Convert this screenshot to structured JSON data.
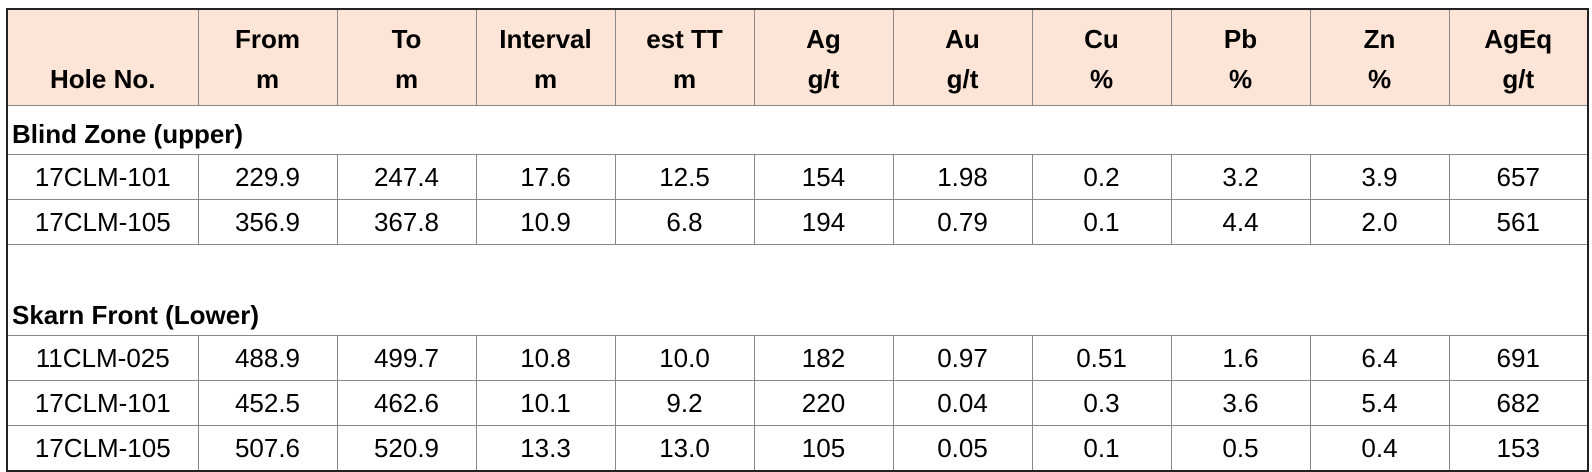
{
  "table": {
    "header": [
      [
        "Hole No."
      ],
      [
        "From",
        "m"
      ],
      [
        "To",
        "m"
      ],
      [
        "Interval",
        "m"
      ],
      [
        "est TT",
        "m"
      ],
      [
        "Ag",
        "g/t"
      ],
      [
        "Au",
        "g/t"
      ],
      [
        "Cu",
        "%"
      ],
      [
        "Pb",
        "%"
      ],
      [
        "Zn",
        "%"
      ],
      [
        "AgEq",
        "g/t"
      ]
    ],
    "sections": [
      {
        "title": "Blind Zone (upper)",
        "rows": [
          [
            "17CLM-101",
            "229.9",
            "247.4",
            "17.6",
            "12.5",
            "154",
            "1.98",
            "0.2",
            "3.2",
            "3.9",
            "657"
          ],
          [
            "17CLM-105",
            "356.9",
            "367.8",
            "10.9",
            "6.8",
            "194",
            "0.79",
            "0.1",
            "4.4",
            "2.0",
            "561"
          ]
        ]
      },
      {
        "title": "Skarn Front (Lower)",
        "rows": [
          [
            "11CLM-025",
            "488.9",
            "499.7",
            "10.8",
            "10.0",
            "182",
            "0.97",
            "0.51",
            "1.6",
            "6.4",
            "691"
          ],
          [
            "17CLM-101",
            "452.5",
            "462.6",
            "10.1",
            "9.2",
            "220",
            "0.04",
            "0.3",
            "3.6",
            "5.4",
            "682"
          ],
          [
            "17CLM-105",
            "507.6",
            "520.9",
            "13.3",
            "13.0",
            "105",
            "0.05",
            "0.1",
            "0.5",
            "0.4",
            "153"
          ]
        ]
      }
    ]
  }
}
